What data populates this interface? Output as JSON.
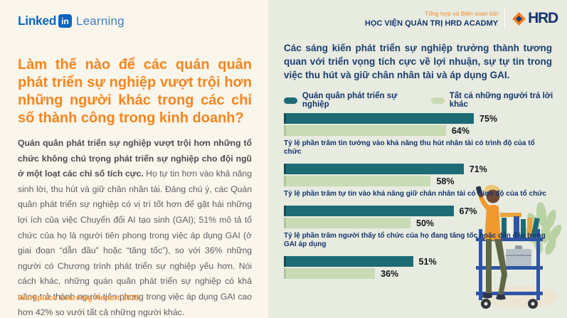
{
  "page": {
    "bg_left": "#fbf6ec",
    "bg_right": "#e7ebe0",
    "accent_orange": "#f6851f",
    "accent_navy": "#1c3e70"
  },
  "brand": {
    "linkedin_logo": {
      "linked": "Linked",
      "in": "in",
      "learning": "Learning",
      "color": "#0a66c2"
    },
    "footer": "Workplace Learning Report 2025"
  },
  "left_panel": {
    "heading": "Làm thế nào để các quán quân phát triển sự nghiệp vượt trội hơn những người khác trong các chỉ số thành công trong kinh doanh?",
    "body_lead": "Quán quân phát triển sự nghiệp vượt trội hơn những tổ chức không chú trọng phát triển sự nghiệp cho đội ngũ ở một loạt các chỉ số tích cực.",
    "body_rest": " Họ tự tin hơn vào khả năng sinh lời, thu hút và giữ chân nhân tài. Đáng chú ý, các Quán quân phát triển sự nghiệp có vị trí tốt hơn để gặt hái những lợi ích của việc Chuyển đổi AI tạo sinh (GAI); 51% mô tả tổ chức của họ là người tiên phong trong việc áp dụng GAI (ở giai đoạn “dẫn đầu” hoặc “tăng tốc”), so với 36% những người có Chương trình phát triển sự nghiệp yếu hơn. Nói cách khác, những quán quân phát triển sự nghiệp có khả năng trở thành người tiên phong trong việc áp dụng GAI cao hơn 42% so vưới tất cả những người khác."
  },
  "attribution": {
    "tagline": "Tổng hợp và Biên soạn bởi",
    "organization": "HỌC VIỆN QUẢN TRỊ HRD ACADMY",
    "logo_text": "HRD",
    "logo_icon": "diamond-icon",
    "logo_colors": {
      "diamond_outer": "#f58220",
      "diamond_inner": "#1c3e78"
    }
  },
  "chart_data": {
    "type": "bar",
    "orientation": "horizontal",
    "title": "Các sáng kiến phát triển sự nghiệp trưởng thành tương quan với triển vọng tích cực về lợi nhuận, sự tự tin trong việc thu hút và giữ chân nhân tài và áp dụng GAI.",
    "legend_position": "top",
    "grid": false,
    "xlim": [
      0,
      100
    ],
    "value_suffix": "%",
    "series_names": [
      "Quán quân phát triển sự nghiệp",
      "Tất cả những người trả lời khác"
    ],
    "colors": {
      "champion": "#1d6b74",
      "others": "#c9dbb5"
    },
    "groups": [
      {
        "champion": 75,
        "others": 64,
        "caption": "Tỷ lệ phần trăm tin tưởng vào khả năng thu hút nhân tài có trình độ của tổ chức"
      },
      {
        "champion": 71,
        "others": 58,
        "caption": "Tỷ lệ phần trăm tự tin vào khả năng giữ chân nhân tài có trình độ của tổ chức"
      },
      {
        "champion": 67,
        "others": 50,
        "caption": "Tỷ lệ phần trăm người thấy tổ chức của họ đang tăng tốc hoặc dẫn đầu trong GAI áp dụng"
      },
      {
        "champion": 51,
        "others": 36,
        "caption": ""
      }
    ]
  }
}
